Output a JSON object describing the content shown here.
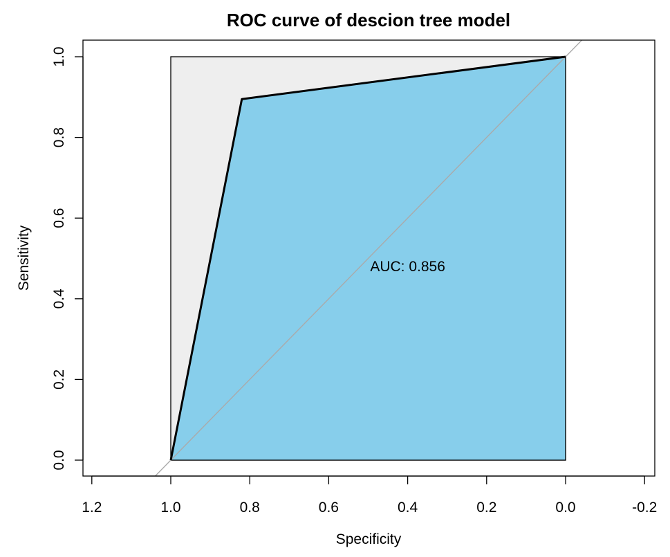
{
  "chart_data": {
    "type": "line",
    "title": "ROC curve of descion tree model",
    "xlabel": "Specificity",
    "ylabel": "Sensitivity",
    "xlim": [
      1.2,
      -0.2
    ],
    "ylim": [
      0.0,
      1.0
    ],
    "x_ticks": [
      "1.2",
      "1.0",
      "0.8",
      "0.6",
      "0.4",
      "0.2",
      "0.0",
      "-0.2"
    ],
    "y_ticks": [
      "0.0",
      "0.2",
      "0.4",
      "0.6",
      "0.8",
      "1.0"
    ],
    "x_tick_values": [
      1.2,
      1.0,
      0.8,
      0.6,
      0.4,
      0.2,
      0.0,
      -0.2
    ],
    "y_tick_values": [
      0.0,
      0.2,
      0.4,
      0.6,
      0.8,
      1.0
    ],
    "series": [
      {
        "x": [
          1.0,
          0.82,
          0.0
        ],
        "y": [
          0.0,
          0.895,
          1.0
        ]
      }
    ],
    "auc": {
      "text": "AUC: 0.856",
      "x": 0.4,
      "y": 0.48
    },
    "reference_line": {
      "x": [
        1.0,
        0.0
      ],
      "y": [
        0.0,
        1.0
      ]
    },
    "grid": false,
    "colors": {
      "auc_fill": "#87CEEB",
      "max_area_fill": "#EEEEEE",
      "curve": "#000000",
      "reference": "#AAAAAA"
    }
  }
}
